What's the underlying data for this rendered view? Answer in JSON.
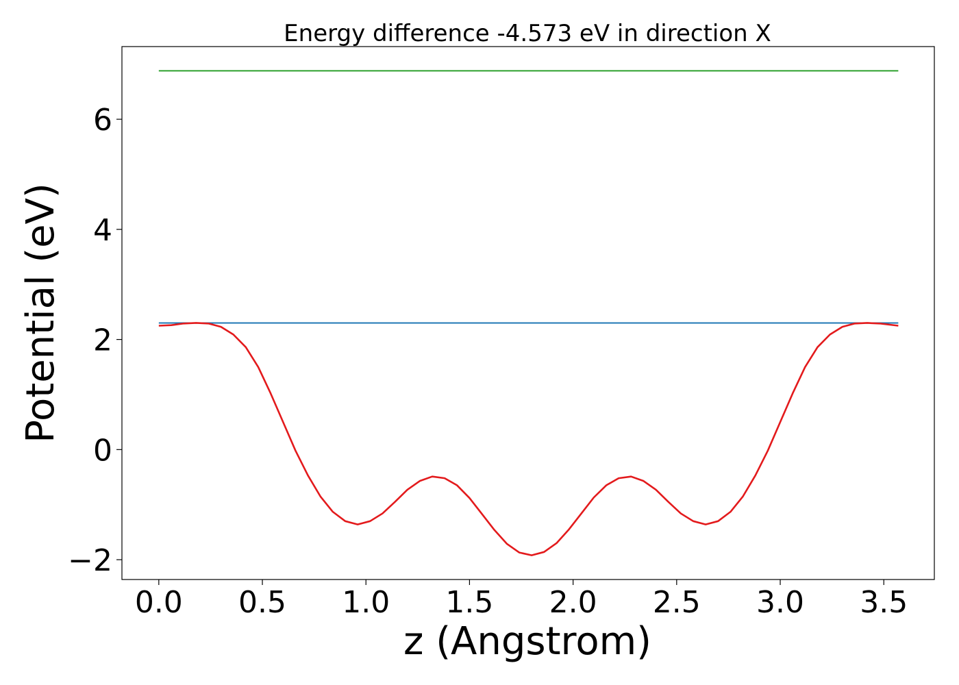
{
  "chart_data": {
    "type": "line",
    "title": "Energy difference -4.573 eV in direction X",
    "xlabel": "z (Angstrom)",
    "ylabel": "Potential (eV)",
    "xlim": [
      -0.178,
      3.744
    ],
    "ylim": [
      -2.36,
      7.32
    ],
    "xticks": [
      0.0,
      0.5,
      1.0,
      1.5,
      2.0,
      2.5,
      3.0,
      3.5
    ],
    "xtick_labels": [
      "0.0",
      "0.5",
      "1.0",
      "1.5",
      "2.0",
      "2.5",
      "3.0",
      "3.5"
    ],
    "yticks": [
      -2,
      0,
      2,
      4,
      6
    ],
    "ytick_labels": [
      "−2",
      "0",
      "2",
      "4",
      "6"
    ],
    "grid": false,
    "series": [
      {
        "color": "#2ca02c",
        "x": [
          0.0,
          3.57
        ],
        "y": [
          6.88,
          6.88
        ]
      },
      {
        "color": "#1f77b4",
        "x": [
          0.0,
          3.57
        ],
        "y": [
          2.3,
          2.3
        ]
      },
      {
        "color": "#e31a1c",
        "x": [
          0.0,
          0.06,
          0.12,
          0.18,
          0.24,
          0.3,
          0.36,
          0.42,
          0.48,
          0.54,
          0.6,
          0.66,
          0.72,
          0.78,
          0.84,
          0.9,
          0.96,
          1.02,
          1.08,
          1.14,
          1.2,
          1.26,
          1.32,
          1.38,
          1.44,
          1.5,
          1.56,
          1.62,
          1.68,
          1.74,
          1.8,
          1.86,
          1.92,
          1.98,
          2.04,
          2.1,
          2.16,
          2.22,
          2.28,
          2.34,
          2.4,
          2.46,
          2.52,
          2.58,
          2.64,
          2.7,
          2.76,
          2.82,
          2.88,
          2.94,
          3.0,
          3.06,
          3.12,
          3.18,
          3.24,
          3.3,
          3.36,
          3.42,
          3.48,
          3.57
        ],
        "y": [
          2.25,
          2.26,
          2.29,
          2.3,
          2.29,
          2.23,
          2.09,
          1.86,
          1.5,
          1.02,
          0.5,
          -0.02,
          -0.47,
          -0.85,
          -1.13,
          -1.3,
          -1.36,
          -1.3,
          -1.16,
          -0.95,
          -0.73,
          -0.57,
          -0.49,
          -0.52,
          -0.65,
          -0.88,
          -1.17,
          -1.46,
          -1.71,
          -1.87,
          -1.92,
          -1.86,
          -1.7,
          -1.45,
          -1.16,
          -0.87,
          -0.65,
          -0.52,
          -0.49,
          -0.57,
          -0.73,
          -0.95,
          -1.16,
          -1.3,
          -1.36,
          -1.3,
          -1.13,
          -0.85,
          -0.47,
          -0.02,
          0.5,
          1.02,
          1.5,
          1.86,
          2.09,
          2.23,
          2.29,
          2.3,
          2.29,
          2.25
        ]
      }
    ]
  }
}
